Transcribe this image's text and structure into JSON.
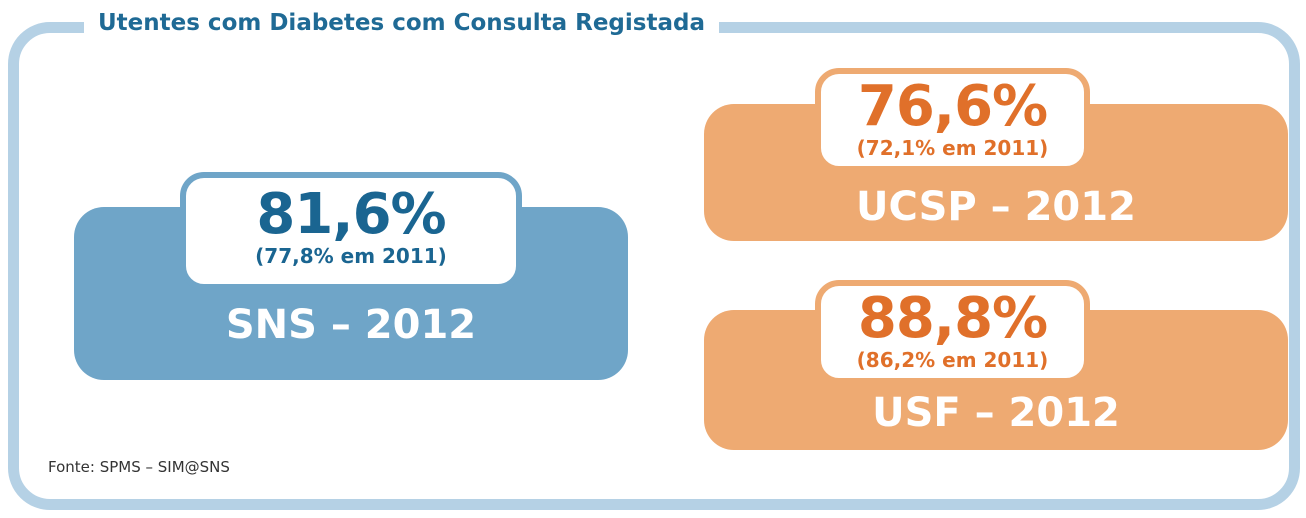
{
  "title": "Utentes com Diabetes com Consulta Registada",
  "source": "Fonte: SPMS – SIM@SNS",
  "panels": [
    {
      "value": "81,6%",
      "previous": "(77,8% em 2011)",
      "label": "SNS – 2012"
    },
    {
      "value": "76,6%",
      "previous": "(72,1% em 2011)",
      "label": "UCSP – 2012"
    },
    {
      "value": "88,8%",
      "previous": "(86,2% em 2011)",
      "label": "USF – 2012"
    }
  ]
}
